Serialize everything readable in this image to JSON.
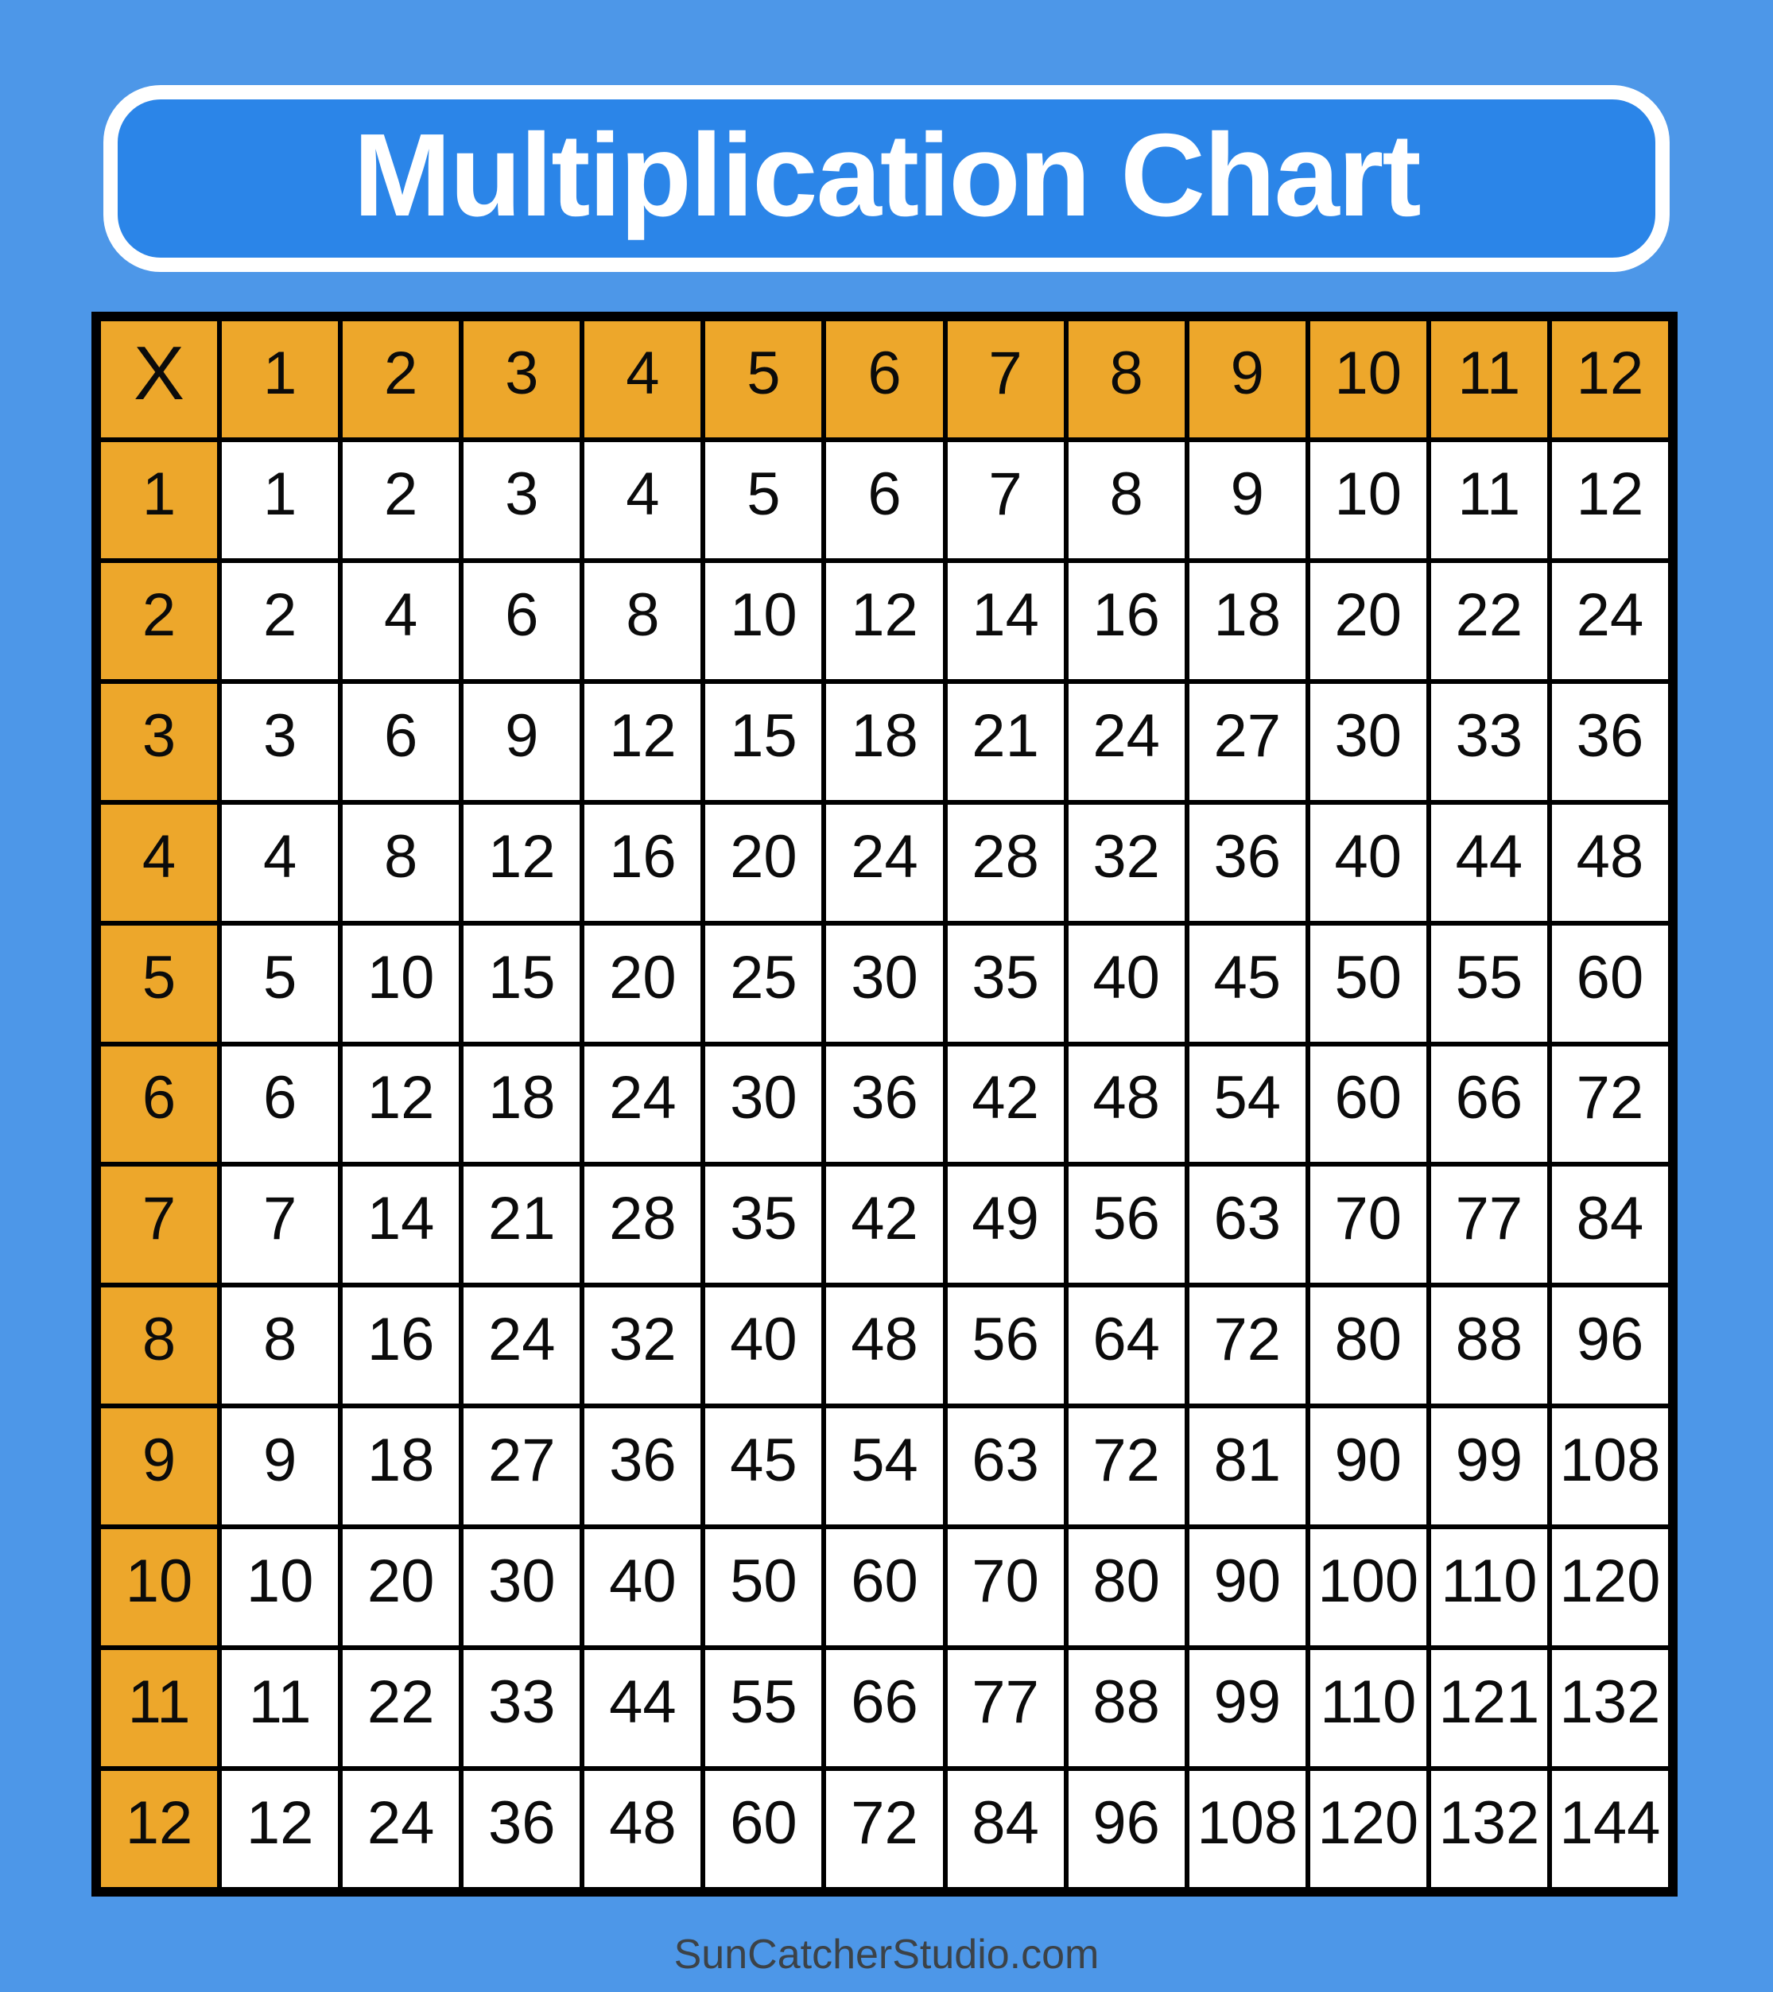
{
  "title": "Multiplication Chart",
  "footer": "SunCatcherStudio.com",
  "colors": {
    "background": "#4d97e8",
    "banner_fill": "#2b85e8",
    "banner_border": "#ffffff",
    "header_accent": "#eda72b",
    "cell_fill": "#ffffff",
    "grid_line": "#000000",
    "number_text": "#0b0b0b",
    "title_text": "#ffffff",
    "footer_text": "#3c4247"
  },
  "chart_data": {
    "type": "table",
    "title": "Multiplication Chart",
    "corner_label": "X",
    "columns": [
      "1",
      "2",
      "3",
      "4",
      "5",
      "6",
      "7",
      "8",
      "9",
      "10",
      "11",
      "12"
    ],
    "rows": [
      {
        "label": "1",
        "values": [
          1,
          2,
          3,
          4,
          5,
          6,
          7,
          8,
          9,
          10,
          11,
          12
        ]
      },
      {
        "label": "2",
        "values": [
          2,
          4,
          6,
          8,
          10,
          12,
          14,
          16,
          18,
          20,
          22,
          24
        ]
      },
      {
        "label": "3",
        "values": [
          3,
          6,
          9,
          12,
          15,
          18,
          21,
          24,
          27,
          30,
          33,
          36
        ]
      },
      {
        "label": "4",
        "values": [
          4,
          8,
          12,
          16,
          20,
          24,
          28,
          32,
          36,
          40,
          44,
          48
        ]
      },
      {
        "label": "5",
        "values": [
          5,
          10,
          15,
          20,
          25,
          30,
          35,
          40,
          45,
          50,
          55,
          60
        ]
      },
      {
        "label": "6",
        "values": [
          6,
          12,
          18,
          24,
          30,
          36,
          42,
          48,
          54,
          60,
          66,
          72
        ]
      },
      {
        "label": "7",
        "values": [
          7,
          14,
          21,
          28,
          35,
          42,
          49,
          56,
          63,
          70,
          77,
          84
        ]
      },
      {
        "label": "8",
        "values": [
          8,
          16,
          24,
          32,
          40,
          48,
          56,
          64,
          72,
          80,
          88,
          96
        ]
      },
      {
        "label": "9",
        "values": [
          9,
          18,
          27,
          36,
          45,
          54,
          63,
          72,
          81,
          90,
          99,
          108
        ]
      },
      {
        "label": "10",
        "values": [
          10,
          20,
          30,
          40,
          50,
          60,
          70,
          80,
          90,
          100,
          110,
          120
        ]
      },
      {
        "label": "11",
        "values": [
          11,
          22,
          33,
          44,
          55,
          66,
          77,
          88,
          99,
          110,
          121,
          132
        ]
      },
      {
        "label": "12",
        "values": [
          12,
          24,
          36,
          48,
          60,
          72,
          84,
          96,
          108,
          120,
          132,
          144
        ]
      }
    ],
    "layout": {
      "grid": "13x13",
      "header_row": true,
      "header_column": true
    }
  }
}
